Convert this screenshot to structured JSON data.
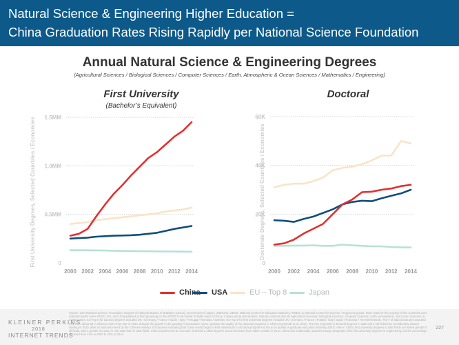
{
  "header": {
    "line1": "Natural Science & Engineering Higher Education =",
    "line2": "China Graduation Rates Rising Rapidly per National Science Foundation"
  },
  "title": "Annual Natural Science & Engineering Degrees",
  "subtitle": "(Agricultural Sciences / Biological Sciences / Computer Sciences / Earth, Atmospheric & Ocean Sciences / Mathematics / Engineering)",
  "colors": {
    "China": "#e3302f",
    "USA": "#0f4e7c",
    "EU – Top 8": "#f9e4c6",
    "Japan": "#b6e2d6"
  },
  "chart_data": [
    {
      "type": "line",
      "title": "First University",
      "subtitle": "(Bachelor’s Equivalent)",
      "ylabel": "First University Degrees, Selected Countries / Economies",
      "ylim": [
        0,
        1.5
      ],
      "yticks": [
        0,
        0.5,
        1.0,
        1.5
      ],
      "ytick_labels": [
        "0",
        "0.5MM",
        "1.0MM",
        "1.5MM"
      ],
      "x": [
        2000,
        2001,
        2002,
        2003,
        2004,
        2005,
        2006,
        2007,
        2008,
        2009,
        2010,
        2011,
        2012,
        2013,
        2014
      ],
      "xticks": [
        2000,
        2002,
        2004,
        2006,
        2008,
        2010,
        2012,
        2014
      ],
      "series": [
        {
          "name": "China",
          "values": [
            0.28,
            0.3,
            0.35,
            0.48,
            0.6,
            0.71,
            0.8,
            0.9,
            0.99,
            1.08,
            1.14,
            1.22,
            1.3,
            1.36,
            1.45
          ]
        },
        {
          "name": "USA",
          "values": [
            0.25,
            0.255,
            0.26,
            0.27,
            0.275,
            0.28,
            0.282,
            0.285,
            0.29,
            0.3,
            0.31,
            0.33,
            0.35,
            0.365,
            0.38
          ]
        },
        {
          "name": "EU – Top 8",
          "values": [
            0.4,
            0.41,
            0.42,
            0.44,
            0.45,
            0.46,
            0.47,
            0.48,
            0.49,
            0.5,
            0.51,
            0.53,
            0.54,
            0.55,
            0.57
          ]
        },
        {
          "name": "Japan",
          "values": [
            0.13,
            0.13,
            0.13,
            0.129,
            0.127,
            0.125,
            0.123,
            0.122,
            0.12,
            0.12,
            0.119,
            0.118,
            0.117,
            0.116,
            0.115
          ]
        }
      ]
    },
    {
      "type": "line",
      "title": "Doctoral",
      "ylabel": "Doctorate Degrees, Selected Countries / Economies",
      "ylim": [
        0,
        60000
      ],
      "yticks": [
        0,
        20000,
        40000,
        60000
      ],
      "ytick_labels": [
        "0",
        "20K",
        "40K",
        "60K"
      ],
      "x": [
        2000,
        2001,
        2002,
        2003,
        2004,
        2005,
        2006,
        2007,
        2008,
        2009,
        2010,
        2011,
        2012,
        2013,
        2014
      ],
      "xticks": [
        2000,
        2002,
        2004,
        2006,
        2008,
        2010,
        2012,
        2014
      ],
      "series": [
        {
          "name": "China",
          "values": [
            7500,
            8000,
            9500,
            12000,
            14000,
            16000,
            20000,
            24000,
            26000,
            29000,
            29200,
            30000,
            30500,
            31500,
            32000
          ]
        },
        {
          "name": "USA",
          "values": [
            17500,
            17300,
            16800,
            18000,
            19000,
            20500,
            22000,
            24000,
            25000,
            25500,
            25300,
            26500,
            27500,
            28500,
            30000
          ]
        },
        {
          "name": "EU – Top 8",
          "values": [
            31000,
            32000,
            32500,
            32500,
            33500,
            35000,
            38000,
            39000,
            39500,
            40500,
            42000,
            44000,
            44000,
            50000,
            49000
          ]
        },
        {
          "name": "Japan",
          "values": [
            7000,
            7000,
            7100,
            7100,
            7200,
            7000,
            7000,
            7500,
            7200,
            7000,
            6800,
            6800,
            6500,
            6400,
            6300
          ]
        }
      ]
    }
  ],
  "legend": [
    "China",
    "USA",
    "EU – Top 8",
    "Japan"
  ],
  "footer": {
    "source": "Source: USA National Science Foundation analysis of National Bureau of Statistics (China), Government of Japan, UNESCO, OECD, National Center for Education Statistics, IPEDS, & National Center for Science / Engineering data. Note: Data for the majority of the countries were collected under same OECD, EU, and UN guidelines & field groupings in the ISCED F are similar to fields used in China. s major group descriptions. Natural sciences include agricultural sciences; biological sciences; computer sciences; earth, atmospheric, and ocean sciences; & mathematics. EU-Top 8 for doctoral degrees included UK / Germany / France / Spain / Italy / Portugal / Romania / Sweden. EU-Top 8 for first university degrees included UK / Germany / France / Poland / Italy / Spain / Romania / The Netherlands. The # of S&E doctorates awarded rose from about 36 in China to more than 34K in 2014. Despite the growth in the quantity of doctorates, some question the quality of the doctoral programs in China (Cyranoski et al. 2011). The rise of growth in doctoral degrees in S&E and in all fields has considerably slowed starting in 2010, after an announcement by the Chinese Ministry of Education indicating that China would begin to limit admissions to doctoral programs & focus on quality of graduate education (Mooney 2007). Also in China, first university degrees in S&E fields increased greatly in all fields, with a greater increase in non-S&E than in S&E fields. China experienced an increase of almost 1.3MM degrees and an increase from 450K to 840K in 2014. China has traditionally awarded a large proportion of its first university degrees in engineering, but the percentage declined from 43% in 2000 to 33% in 2014.",
    "brand1": "KLEINER PERKINS",
    "brand2": "2018",
    "brand3": "INTERNET TRENDS",
    "page": "227"
  }
}
